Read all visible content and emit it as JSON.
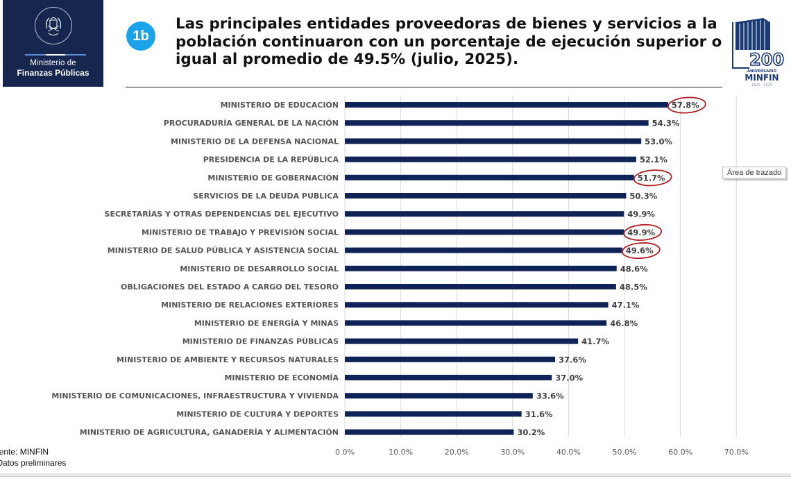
{
  "header": {
    "logo_left": {
      "emblem_text_top": "GOBIERNO DE LA REPÚBLICA",
      "emblem_text_bottom": "GUATEMALA",
      "line1": "Ministerio de",
      "line2": "Finanzas Públicas"
    },
    "badge": "1b",
    "title": "Las principales entidades proveedoras de bienes y servicios a la población continuaron con un porcentaje de ejecución superior o igual al promedio de 49.5% (julio, 2025).",
    "logo_right": {
      "number": "200",
      "line1": "ANIVERSARIO",
      "line2": "MINFIN",
      "years": "1825 · 2025"
    }
  },
  "tooltip": "Área de trazado",
  "footnotes": {
    "source": "uente: MINFIN",
    "note": "fDatos preliminares"
  },
  "colors": {
    "bar": "#0f2356",
    "highlight": "#b01e23",
    "badge": "#1aa3e8",
    "logo_bg": "#16264f"
  },
  "chart_data": {
    "type": "bar",
    "orientation": "horizontal",
    "title": "Las principales entidades proveedoras de bienes y servicios a la población continuaron con un porcentaje de ejecución superior o igual al promedio de 49.5% (julio, 2025).",
    "xlabel": "",
    "ylabel": "",
    "xlim": [
      0,
      70
    ],
    "x_ticks": [
      0,
      10,
      20,
      30,
      40,
      50,
      60,
      70
    ],
    "x_tick_labels": [
      "0.0%",
      "10.0%",
      "20.0%",
      "30.0%",
      "40.0%",
      "50.0%",
      "60.0%",
      "70.0%"
    ],
    "grid": "vertical",
    "legend": "none",
    "categories": [
      "MINISTERIO DE EDUCACIÓN",
      "PROCURADURÍA GENERAL DE LA NACIÓN",
      "MINISTERIO DE LA DEFENSA NACIONAL",
      "PRESIDENCIA DE LA REPÚBLICA",
      "MINISTERIO DE GOBERNACIÓN",
      "SERVICIOS DE LA DEUDA PUBLICA",
      "SECRETARÍAS Y OTRAS DEPENDENCIAS DEL EJECUTIVO",
      "MINISTERIO DE TRABAJO Y PREVISIÓN SOCIAL",
      "MINISTERIO DE SALUD PÚBLICA Y ASISTENCIA SOCIAL",
      "MINISTERIO DE DESARROLLO SOCIAL",
      "OBLIGACIONES DEL ESTADO A CARGO DEL TESORO",
      "MINISTERIO DE RELACIONES EXTERIORES",
      "MINISTERIO DE ENERGÍA Y MINAS",
      "MINISTERIO DE FINANZAS PÚBLICAS",
      "MINISTERIO DE AMBIENTE Y RECURSOS NATURALES",
      "MINISTERIO DE ECONOMÍA",
      "MINISTERIO DE  COMUNICACIONES, INFRAESTRUCTURA Y VIVIENDA",
      "MINISTERIO DE CULTURA Y DEPORTES",
      "MINISTERIO DE AGRICULTURA, GANADERÍA Y ALIMENTACIÓN"
    ],
    "values": [
      57.8,
      54.3,
      53.0,
      52.1,
      51.7,
      50.3,
      49.9,
      49.9,
      49.6,
      48.6,
      48.5,
      47.1,
      46.8,
      41.7,
      37.6,
      37.0,
      33.6,
      31.6,
      30.2
    ],
    "value_labels": [
      "57.8%",
      "54.3%",
      "53.0%",
      "52.1%",
      "51.7%",
      "50.3%",
      "49.9%",
      "49.9%",
      "49.6%",
      "48.6%",
      "48.5%",
      "47.1%",
      "46.8%",
      "41.7%",
      "37.6%",
      "37.0%",
      "33.6%",
      "31.6%",
      "30.2%"
    ],
    "highlighted_indices": [
      0,
      4,
      7,
      8
    ],
    "annotation": "Red hand-drawn circles around 57.8%, 51.7%, 49.9% (Trabajo) and 49.6%"
  }
}
